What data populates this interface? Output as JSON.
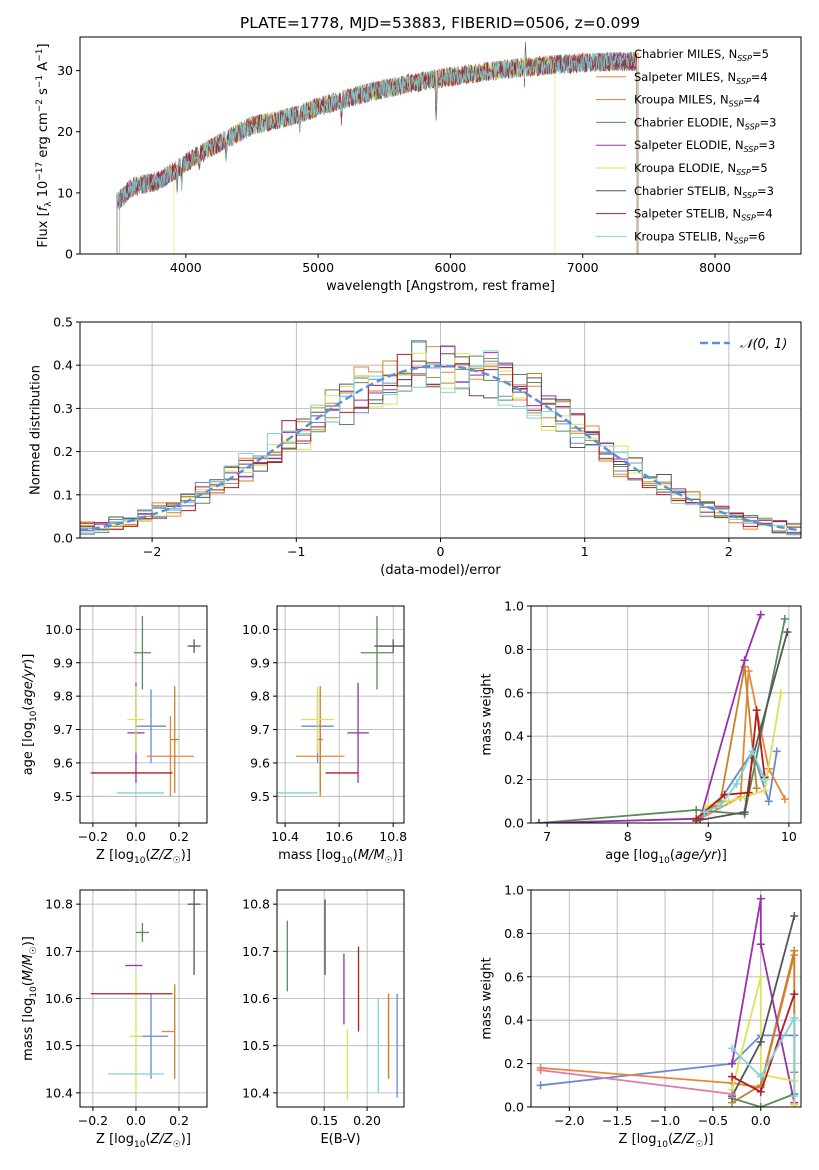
{
  "figure": {
    "title": "PLATE=1778, MJD=53883, FIBERID=0506, z=0.099"
  },
  "models": [
    {
      "name": "Chabrier MILES, N_SSP=5",
      "imf": "Chabrier",
      "lib": "MILES",
      "nssp": "5",
      "color": "#6a89d2"
    },
    {
      "name": "Salpeter MILES, N_SSP=4",
      "imf": "Salpeter",
      "lib": "MILES",
      "nssp": "4",
      "color": "#e8873a"
    },
    {
      "name": "Kroupa MILES, N_SSP=4",
      "imf": "Kroupa",
      "lib": "MILES",
      "nssp": "4",
      "color": "#c8822b"
    },
    {
      "name": "Chabrier ELODIE, N_SSP=3",
      "imf": "Chabrier",
      "lib": "ELODIE",
      "nssp": "3",
      "color": "#5a8a5a"
    },
    {
      "name": "Salpeter ELODIE, N_SSP=3",
      "imf": "Salpeter",
      "lib": "ELODIE",
      "nssp": "3",
      "color": "#9b2fae"
    },
    {
      "name": "Kroupa ELODIE, N_SSP=5",
      "imf": "Kroupa",
      "lib": "ELODIE",
      "nssp": "5",
      "color": "#dce35a"
    },
    {
      "name": "Chabrier STELIB, N_SSP=3",
      "imf": "Chabrier",
      "lib": "STELIB",
      "nssp": "3",
      "color": "#555555"
    },
    {
      "name": "Salpeter STELIB, N_SSP=4",
      "imf": "Salpeter",
      "lib": "STELIB",
      "nssp": "4",
      "color": "#b21d1d"
    },
    {
      "name": "Kroupa STELIB, N_SSP=6",
      "imf": "Kroupa",
      "lib": "STELIB",
      "nssp": "6",
      "color": "#7fd3dc"
    }
  ],
  "chart_data": [
    {
      "id": "spectrum",
      "type": "line",
      "xlabel": "wavelength [Angstrom, rest frame]",
      "ylabel": "Flux [f_λ 10^-17 erg cm^-2 s^-1 A^-1]",
      "xlim": [
        3200,
        8650
      ],
      "ylim": [
        0,
        35.5
      ],
      "xticks": [
        4000,
        5000,
        6000,
        7000,
        8000
      ],
      "yticks": [
        0,
        10,
        20,
        30
      ],
      "grid": false,
      "legend": "top-right",
      "continuum": {
        "x": [
          3480,
          3600,
          3800,
          4000,
          4200,
          4500,
          4800,
          5000,
          5300,
          5600,
          6000,
          6400,
          6800,
          7200,
          7400
        ],
        "y": [
          8.5,
          11,
          12,
          15,
          17.5,
          21,
          22.5,
          24,
          26,
          27.5,
          29,
          30.2,
          31,
          31.5,
          31.5
        ]
      },
      "series_ranges": [
        {
          "model": 0,
          "x": [
            3480,
            7410
          ]
        },
        {
          "model": 1,
          "x": [
            3500,
            7420
          ]
        },
        {
          "model": 2,
          "x": [
            3480,
            7410
          ]
        },
        {
          "model": 3,
          "x": [
            3480,
            7410
          ]
        },
        {
          "model": 4,
          "x": [
            3480,
            7410
          ]
        },
        {
          "model": 5,
          "x": [
            3910,
            6790
          ]
        },
        {
          "model": 6,
          "x": [
            3480,
            7410
          ]
        },
        {
          "model": 7,
          "x": [
            3480,
            7410
          ]
        },
        {
          "model": 8,
          "x": [
            3480,
            7410
          ]
        }
      ]
    },
    {
      "id": "residuals",
      "type": "line",
      "xlabel": "(data-model)/error",
      "ylabel": "Normed distribution",
      "xlim": [
        -2.5,
        2.5
      ],
      "ylim": [
        0,
        0.5
      ],
      "xticks": [
        -2,
        -1,
        0,
        1,
        2
      ],
      "yticks": [
        0.0,
        0.1,
        0.2,
        0.3,
        0.4,
        0.5
      ],
      "grid": true,
      "legend": "top-right",
      "reference": {
        "label": "𝒩(0, 1)",
        "mean": 0,
        "sigma": 1,
        "color": "#5b8fd8"
      },
      "histogram": {
        "bin_width": 0.1,
        "range": [
          -2.5,
          2.5
        ]
      }
    },
    {
      "id": "age_vs_Z",
      "type": "scatter",
      "xlabel": "Z [log10(Z/Z☉)]",
      "ylabel": "age  [log10(age/yr)]",
      "xlim": [
        -0.26,
        0.33
      ],
      "ylim": [
        9.42,
        10.07
      ],
      "xticks": [
        -0.2,
        0.0,
        0.2
      ],
      "yticks": [
        9.5,
        9.6,
        9.7,
        9.8,
        9.9,
        10.0
      ],
      "grid": true,
      "points": [
        {
          "model": 0,
          "x": 0.07,
          "y": 9.71,
          "xerr": 0.07,
          "yerr": 0.11
        },
        {
          "model": 1,
          "x": 0.16,
          "y": 9.62,
          "xerr": 0.11,
          "yerr": 0.12
        },
        {
          "model": 2,
          "x": 0.18,
          "y": 9.67,
          "xerr": 0.02,
          "yerr": 0.16
        },
        {
          "model": 3,
          "x": 0.03,
          "y": 9.93,
          "xerr": 0.04,
          "yerr": 0.11
        },
        {
          "model": 4,
          "x": 0.0,
          "y": 9.69,
          "xerr": 0.04,
          "yerr": 0.15
        },
        {
          "model": 5,
          "x": 0.0,
          "y": 9.73,
          "xerr": 0.04,
          "yerr": 0.1
        },
        {
          "model": 6,
          "x": 0.27,
          "y": 9.95,
          "xerr": 0.03,
          "yerr": 0.02
        },
        {
          "model": 7,
          "x": -0.02,
          "y": 9.57,
          "xerr": 0.19,
          "yerr": 0.0
        },
        {
          "model": 8,
          "x": 0.02,
          "y": 9.51,
          "xerr": 0.11,
          "yerr": 0.0
        }
      ]
    },
    {
      "id": "age_vs_mass",
      "type": "scatter",
      "xlabel": "mass [log10(M/M☉)]",
      "ylabel": "",
      "xlim": [
        10.37,
        10.84
      ],
      "ylim": [
        9.42,
        10.07
      ],
      "xticks": [
        10.4,
        10.6,
        10.8
      ],
      "yticks": [
        9.5,
        9.6,
        9.7,
        9.8,
        9.9,
        10.0
      ],
      "grid": true,
      "points": [
        {
          "model": 0,
          "x": 10.52,
          "y": 9.71,
          "xerr": 0.06,
          "yerr": 0.11
        },
        {
          "model": 1,
          "x": 10.53,
          "y": 9.62,
          "xerr": 0.09,
          "yerr": 0.12
        },
        {
          "model": 2,
          "x": 10.53,
          "y": 9.67,
          "xerr": 0.01,
          "yerr": 0.16
        },
        {
          "model": 3,
          "x": 10.74,
          "y": 9.93,
          "xerr": 0.06,
          "yerr": 0.11
        },
        {
          "model": 4,
          "x": 10.67,
          "y": 9.69,
          "xerr": 0.04,
          "yerr": 0.15
        },
        {
          "model": 5,
          "x": 10.52,
          "y": 9.73,
          "xerr": 0.06,
          "yerr": 0.1
        },
        {
          "model": 6,
          "x": 10.8,
          "y": 9.95,
          "xerr": 0.07,
          "yerr": 0.02
        },
        {
          "model": 7,
          "x": 10.61,
          "y": 9.57,
          "xerr": 0.06,
          "yerr": 0.0
        },
        {
          "model": 8,
          "x": 10.44,
          "y": 9.51,
          "xerr": 0.08,
          "yerr": 0.0
        }
      ]
    },
    {
      "id": "weight_vs_age",
      "type": "line",
      "xlabel": "age  [log10(age/yr)]",
      "ylabel": "mass weight",
      "xlim": [
        6.8,
        10.15
      ],
      "ylim": [
        0,
        1
      ],
      "xticks": [
        7,
        8,
        9,
        10
      ],
      "yticks": [
        0.0,
        0.2,
        0.4,
        0.6,
        0.8,
        1.0
      ],
      "grid": true,
      "series": [
        {
          "model": 0,
          "x": [
            8.85,
            9.1,
            9.55,
            9.75,
            9.85
          ],
          "y": [
            0.01,
            0.08,
            0.33,
            0.1,
            0.33
          ]
        },
        {
          "model": 1,
          "x": [
            8.85,
            9.4,
            9.5,
            9.75,
            9.95
          ],
          "y": [
            0.01,
            0.12,
            0.7,
            0.25,
            0.11
          ]
        },
        {
          "model": 2,
          "x": [
            8.85,
            9.15,
            9.45,
            9.6
          ],
          "y": [
            0.02,
            0.1,
            0.72,
            0.16
          ]
        },
        {
          "model": 3,
          "x": [
            6.9,
            8.85,
            9.45,
            9.95
          ],
          "y": [
            0.0,
            0.06,
            0.04,
            0.94
          ]
        },
        {
          "model": 4,
          "x": [
            6.9,
            8.9,
            9.45,
            9.65
          ],
          "y": [
            0.0,
            0.02,
            0.75,
            0.96
          ]
        },
        {
          "model": 5,
          "x": [
            8.85,
            9.0,
            9.25,
            9.45,
            9.7,
            9.9
          ],
          "y": [
            0.01,
            0.08,
            0.1,
            0.12,
            0.15,
            0.6
          ]
        },
        {
          "model": 6,
          "x": [
            8.85,
            9.45,
            9.55,
            9.98
          ],
          "y": [
            0.01,
            0.05,
            0.3,
            0.88
          ]
        },
        {
          "model": 7,
          "x": [
            8.85,
            9.2,
            9.5,
            9.6,
            9.7
          ],
          "y": [
            0.02,
            0.13,
            0.14,
            0.52,
            0.21
          ]
        },
        {
          "model": 8,
          "x": [
            8.95,
            9.15,
            9.35,
            9.55,
            9.7
          ],
          "y": [
            0.05,
            0.08,
            0.18,
            0.33,
            0.2
          ]
        }
      ]
    },
    {
      "id": "mass_vs_Z",
      "type": "scatter",
      "xlabel": "Z [log10(Z/Z☉)]",
      "ylabel": "mass [log10(M/M☉)]",
      "xlim": [
        -0.26,
        0.33
      ],
      "ylim": [
        10.37,
        10.83
      ],
      "xticks": [
        -0.2,
        0.0,
        0.2
      ],
      "yticks": [
        10.4,
        10.5,
        10.6,
        10.7,
        10.8
      ],
      "grid": true,
      "points": [
        {
          "model": 0,
          "x": 0.07,
          "y": 10.52,
          "xerr": 0.08,
          "yerr": 0.09
        },
        {
          "model": 1,
          "x": 0.15,
          "y": 10.53,
          "xerr": 0.03,
          "yerr": 0.0
        },
        {
          "model": 2,
          "x": 0.18,
          "y": 10.53,
          "xerr": 0.0,
          "yerr": 0.1
        },
        {
          "model": 3,
          "x": 0.03,
          "y": 10.74,
          "xerr": 0.03,
          "yerr": 0.02
        },
        {
          "model": 4,
          "x": -0.01,
          "y": 10.67,
          "xerr": 0.04,
          "yerr": 0.0
        },
        {
          "model": 5,
          "x": 0.0,
          "y": 10.52,
          "xerr": 0.03,
          "yerr": 0.13
        },
        {
          "model": 6,
          "x": 0.27,
          "y": 10.8,
          "xerr": 0.03,
          "yerr": 0.15
        },
        {
          "model": 7,
          "x": -0.02,
          "y": 10.61,
          "xerr": 0.19,
          "yerr": 0.0
        },
        {
          "model": 8,
          "x": 0.0,
          "y": 10.44,
          "xerr": 0.13,
          "yerr": 0.0
        }
      ]
    },
    {
      "id": "mass_vs_ebv",
      "type": "scatter",
      "xlabel": "E(B-V)",
      "ylabel": "",
      "xlim": [
        0.095,
        0.243
      ],
      "ylim": [
        10.37,
        10.83
      ],
      "xticks": [
        0.15,
        0.2
      ],
      "yticks": [
        10.4,
        10.5,
        10.6,
        10.7,
        10.8
      ],
      "grid": true,
      "points": [
        {
          "model": 0,
          "x": 0.235,
          "y": 10.5,
          "xerr": 0.0,
          "yerr": 0.11
        },
        {
          "model": 1,
          "x": 0.225,
          "y": 10.52,
          "xerr": 0.0,
          "yerr": 0.09
        },
        {
          "model": 2,
          "x": 0.225,
          "y": 10.52,
          "xerr": 0.0,
          "yerr": 0.09
        },
        {
          "model": 3,
          "x": 0.107,
          "y": 10.69,
          "xerr": 0.0,
          "yerr": 0.075
        },
        {
          "model": 4,
          "x": 0.173,
          "y": 10.62,
          "xerr": 0.0,
          "yerr": 0.075
        },
        {
          "model": 5,
          "x": 0.177,
          "y": 10.46,
          "xerr": 0.0,
          "yerr": 0.075
        },
        {
          "model": 6,
          "x": 0.151,
          "y": 10.73,
          "xerr": 0.0,
          "yerr": 0.08
        },
        {
          "model": 7,
          "x": 0.19,
          "y": 10.62,
          "xerr": 0.0,
          "yerr": 0.09
        },
        {
          "model": 8,
          "x": 0.213,
          "y": 10.5,
          "xerr": 0.0,
          "yerr": 0.1
        }
      ]
    },
    {
      "id": "weight_vs_Z",
      "type": "line",
      "xlabel": "Z [log10(Z/Z☉)]",
      "ylabel": "mass weight",
      "xlim": [
        -2.4,
        0.42
      ],
      "ylim": [
        0,
        1
      ],
      "xticks": [
        -2.0,
        -1.5,
        -1.0,
        -0.5,
        0.0
      ],
      "yticks": [
        0.0,
        0.2,
        0.4,
        0.6,
        0.8,
        1.0
      ],
      "grid": true,
      "series": [
        {
          "model": 0,
          "x": [
            -2.3,
            -0.3,
            0.0,
            0.35
          ],
          "y": [
            0.1,
            0.2,
            0.33,
            0.33
          ]
        },
        {
          "model": 1,
          "x": [
            -2.3,
            -0.3,
            0.0,
            0.35,
            0.35
          ],
          "y": [
            0.18,
            0.11,
            0.09,
            0.7,
            0.01
          ]
        },
        {
          "model": 2,
          "x": [
            -0.3,
            0.0,
            0.35,
            0.35
          ],
          "y": [
            0.02,
            0.1,
            0.72,
            0.16
          ]
        },
        {
          "model": 3,
          "x": [
            -0.3,
            0.0,
            0.35
          ],
          "y": [
            0.04,
            0.0,
            0.06
          ]
        },
        {
          "model": 4,
          "x": [
            -0.3,
            0.0,
            0.0,
            0.35
          ],
          "y": [
            0.2,
            0.96,
            0.75,
            0.02
          ]
        },
        {
          "model": 5,
          "x": [
            -0.3,
            0.0,
            0.0,
            0.35,
            0.35
          ],
          "y": [
            0.08,
            0.6,
            0.15,
            0.12,
            0.01
          ]
        },
        {
          "model": 6,
          "x": [
            -0.3,
            0.0,
            0.35
          ],
          "y": [
            0.05,
            0.3,
            0.88
          ]
        },
        {
          "model": 7,
          "x": [
            -0.3,
            0.0,
            0.35
          ],
          "y": [
            0.14,
            0.07,
            0.52
          ]
        },
        {
          "model": 8,
          "x": [
            -0.3,
            0.0,
            0.35,
            0.35
          ],
          "y": [
            0.27,
            0.14,
            0.41,
            0.05
          ]
        },
        {
          "model": 4,
          "x": [
            -2.3,
            -0.3
          ],
          "y": [
            0.17,
            0.06
          ],
          "color_override": "#e07aa8"
        }
      ]
    }
  ]
}
